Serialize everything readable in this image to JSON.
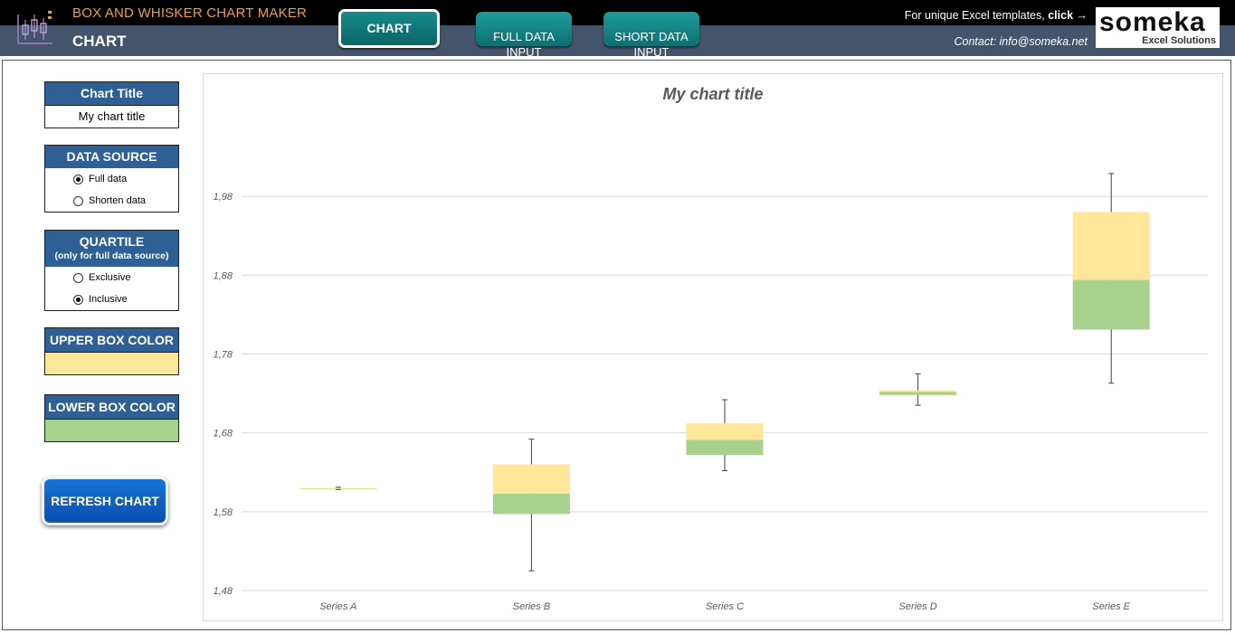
{
  "header": {
    "app_title": "BOX AND WHISKER CHART MAKER",
    "page_name": "CHART",
    "nav": [
      {
        "label": "CHART",
        "active": true
      },
      {
        "label": "FULL DATA\nINPUT",
        "active": false
      },
      {
        "label": "SHORT DATA\nINPUT",
        "active": false
      }
    ],
    "promo_text": "For unique Excel templates, ",
    "promo_link": "click →",
    "contact": "Contact: info@someka.net",
    "brand_name": "someka",
    "brand_sub": "Excel Solutions"
  },
  "sidebar": {
    "chart_title_label": "Chart Title",
    "chart_title_value": "My chart title",
    "data_source_label": "DATA SOURCE",
    "data_source_options": [
      {
        "label": "Full data",
        "selected": true
      },
      {
        "label": "Shorten data",
        "selected": false
      }
    ],
    "quartile_label": "QUARTILE",
    "quartile_note": "(only for full data source)",
    "quartile_options": [
      {
        "label": "Exclusive",
        "selected": false
      },
      {
        "label": "Inclusive",
        "selected": true
      }
    ],
    "upper_color_label": "UPPER BOX COLOR",
    "upper_color": "#ffe699",
    "lower_color_label": "LOWER BOX COLOR",
    "lower_color": "#a9d18e",
    "refresh_label": "REFRESH CHART"
  },
  "colors": {
    "header_black": "#000000",
    "header_slate": "#44546a",
    "app_title": "#f0a030",
    "nav_teal": "#138080",
    "panel_blue": "#2e6095",
    "refresh_blue": "#0a5cc4"
  },
  "chart_data": {
    "type": "box",
    "title": "My chart title",
    "categories": [
      "Series A",
      "Series B",
      "Series C",
      "Series D",
      "Series E"
    ],
    "ylim": [
      1.48,
      2.08
    ],
    "yticks": [
      "1,48",
      "1,58",
      "1,68",
      "1,78",
      "1,88",
      "1,98"
    ],
    "ytick_values": [
      1.48,
      1.58,
      1.68,
      1.78,
      1.88,
      1.98
    ],
    "grid": true,
    "series": [
      {
        "name": "Series A",
        "min": 1.608,
        "q1": 1.609,
        "median": 1.6095,
        "q3": 1.61,
        "max": 1.611
      },
      {
        "name": "Series B",
        "min": 1.505,
        "q1": 1.577,
        "median": 1.603,
        "q3": 1.64,
        "max": 1.672
      },
      {
        "name": "Series C",
        "min": 1.632,
        "q1": 1.652,
        "median": 1.671,
        "q3": 1.692,
        "max": 1.722
      },
      {
        "name": "Series D",
        "min": 1.715,
        "q1": 1.728,
        "median": 1.732,
        "q3": 1.734,
        "max": 1.755
      },
      {
        "name": "Series E",
        "min": 1.743,
        "q1": 1.811,
        "median": 1.874,
        "q3": 1.96,
        "max": 2.009
      }
    ]
  }
}
